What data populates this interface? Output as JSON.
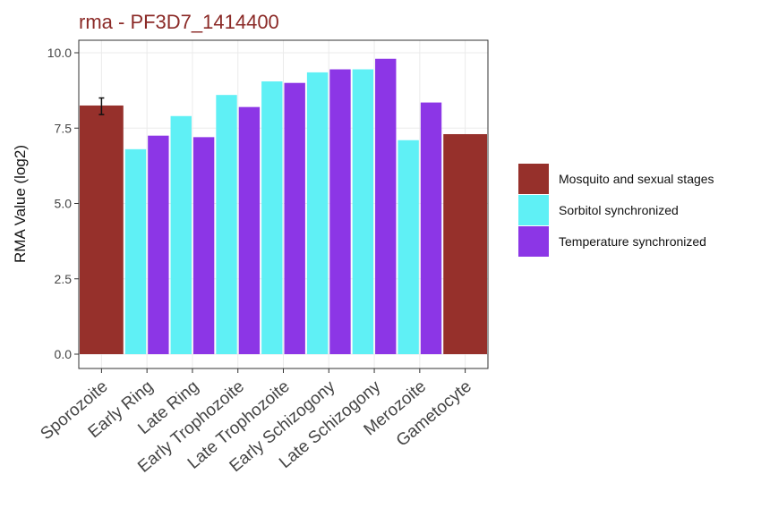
{
  "chart_data": {
    "type": "bar",
    "title": "rma - PF3D7_1414400",
    "xlabel": "",
    "ylabel": "RMA Value (log2)",
    "ylim": [
      0,
      10.4
    ],
    "yticks": [
      "0.0",
      "2.5",
      "5.0",
      "7.5",
      "10.0"
    ],
    "grid": true,
    "legend_position": "right",
    "categories": [
      "Sporozoite",
      "Early Ring",
      "Late Ring",
      "Early Trophozoite",
      "Late Trophozoite",
      "Early Schizogony",
      "Late Schizogony",
      "Merozoite",
      "Gametocyte"
    ],
    "series": [
      {
        "name": "Mosquito and sexual stages",
        "color": "#96302b",
        "values": [
          8.25,
          null,
          null,
          null,
          null,
          null,
          null,
          null,
          7.3
        ]
      },
      {
        "name": "Sorbitol synchronized",
        "color": "#5ff0f5",
        "values": [
          null,
          6.8,
          7.9,
          8.6,
          9.05,
          9.35,
          9.45,
          7.1,
          null
        ]
      },
      {
        "name": "Temperature synchronized",
        "color": "#8c36e6",
        "values": [
          null,
          7.25,
          7.2,
          8.2,
          9.0,
          9.45,
          9.8,
          8.35,
          null
        ]
      }
    ],
    "error_bars": [
      {
        "category": "Sporozoite",
        "series": "Mosquito and sexual stages",
        "low": 7.95,
        "high": 8.5
      }
    ]
  }
}
